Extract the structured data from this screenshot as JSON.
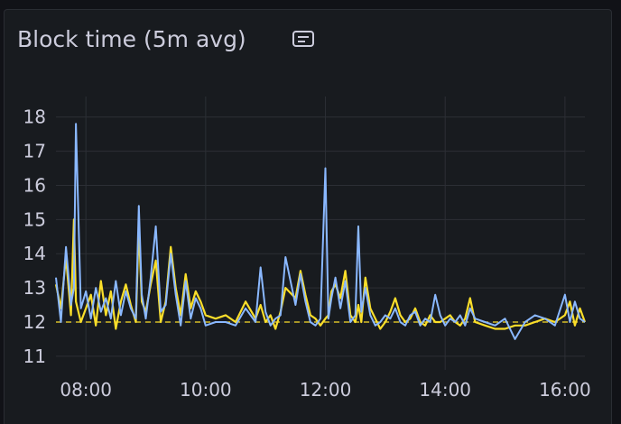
{
  "panel": {
    "title": "Block time (5m avg)",
    "description_icon": "info-note-icon"
  },
  "colors": {
    "background": "#181b1f",
    "grid": "#2c2f35",
    "series_a": "#fade2a",
    "series_b": "#8ab8ff",
    "axis_text": "#ccccdc"
  },
  "chart_data": {
    "type": "line",
    "title": "Block time (5m avg)",
    "xlabel": "",
    "ylabel": "",
    "ylim": [
      10.6,
      18.6
    ],
    "xlim": [
      "07:30",
      "16:20"
    ],
    "y_ticks": [
      11,
      12,
      13,
      14,
      15,
      16,
      17,
      18
    ],
    "x_ticks": [
      "08:00",
      "10:00",
      "12:00",
      "14:00",
      "16:00"
    ],
    "grid": true,
    "legend": "none",
    "threshold": {
      "value": 12,
      "style": "dashed",
      "color": "#fade2a"
    },
    "series": [
      {
        "color": "#fade2a",
        "x": [
          "07:30",
          "07:35",
          "07:40",
          "07:45",
          "07:48",
          "07:50",
          "07:55",
          "08:00",
          "08:05",
          "08:10",
          "08:15",
          "08:20",
          "08:25",
          "08:30",
          "08:35",
          "08:40",
          "08:45",
          "08:50",
          "08:53",
          "08:56",
          "09:00",
          "09:05",
          "09:10",
          "09:15",
          "09:20",
          "09:25",
          "09:30",
          "09:35",
          "09:40",
          "09:45",
          "09:50",
          "09:55",
          "10:00",
          "10:10",
          "10:20",
          "10:30",
          "10:40",
          "10:50",
          "10:55",
          "11:00",
          "11:05",
          "11:10",
          "11:15",
          "11:20",
          "11:30",
          "11:35",
          "11:40",
          "11:45",
          "11:50",
          "11:55",
          "12:00",
          "12:03",
          "12:06",
          "12:10",
          "12:15",
          "12:20",
          "12:25",
          "12:30",
          "12:33",
          "12:36",
          "12:40",
          "12:45",
          "12:50",
          "12:55",
          "13:00",
          "13:05",
          "13:10",
          "13:15",
          "13:20",
          "13:25",
          "13:30",
          "13:35",
          "13:40",
          "13:45",
          "13:50",
          "13:55",
          "14:00",
          "14:05",
          "14:10",
          "14:15",
          "14:20",
          "14:25",
          "14:30",
          "14:40",
          "14:50",
          "15:00",
          "15:10",
          "15:20",
          "15:30",
          "15:40",
          "15:50",
          "16:00",
          "16:05",
          "16:10",
          "16:15",
          "16:20"
        ],
        "values": [
          13.1,
          12.4,
          13.9,
          12.2,
          15.0,
          12.6,
          12.0,
          12.4,
          12.8,
          11.9,
          13.2,
          12.2,
          12.9,
          11.8,
          12.6,
          13.1,
          12.5,
          12.0,
          14.8,
          12.6,
          12.3,
          13.1,
          13.8,
          12.0,
          12.6,
          14.2,
          13.0,
          12.2,
          13.4,
          12.4,
          12.9,
          12.6,
          12.2,
          12.1,
          12.2,
          12.0,
          12.6,
          12.1,
          12.5,
          12.0,
          12.2,
          11.8,
          12.3,
          13.0,
          12.7,
          13.5,
          12.8,
          12.2,
          12.1,
          11.9,
          12.1,
          12.2,
          12.9,
          13.1,
          12.7,
          13.5,
          12.2,
          12.0,
          12.5,
          12.0,
          13.3,
          12.4,
          12.1,
          11.8,
          12.0,
          12.3,
          12.7,
          12.2,
          12.0,
          12.1,
          12.4,
          12.0,
          11.9,
          12.2,
          12.0,
          12.0,
          12.1,
          12.2,
          12.0,
          11.9,
          12.1,
          12.7,
          12.0,
          11.9,
          11.8,
          11.8,
          11.9,
          11.9,
          12.0,
          12.1,
          12.0,
          12.2,
          12.6,
          11.9,
          12.4,
          12.0
        ]
      },
      {
        "color": "#8ab8ff",
        "x": [
          "07:30",
          "07:35",
          "07:40",
          "07:45",
          "07:48",
          "07:50",
          "07:55",
          "08:00",
          "08:05",
          "08:10",
          "08:15",
          "08:20",
          "08:25",
          "08:30",
          "08:35",
          "08:40",
          "08:45",
          "08:50",
          "08:53",
          "08:56",
          "09:00",
          "09:05",
          "09:10",
          "09:15",
          "09:20",
          "09:25",
          "09:30",
          "09:35",
          "09:40",
          "09:45",
          "09:50",
          "09:55",
          "10:00",
          "10:10",
          "10:20",
          "10:30",
          "10:40",
          "10:50",
          "10:55",
          "11:00",
          "11:05",
          "11:10",
          "11:15",
          "11:20",
          "11:30",
          "11:35",
          "11:40",
          "11:45",
          "11:50",
          "11:55",
          "12:00",
          "12:03",
          "12:06",
          "12:10",
          "12:15",
          "12:20",
          "12:25",
          "12:30",
          "12:33",
          "12:36",
          "12:40",
          "12:45",
          "12:50",
          "12:55",
          "13:00",
          "13:05",
          "13:10",
          "13:15",
          "13:20",
          "13:25",
          "13:30",
          "13:35",
          "13:40",
          "13:45",
          "13:50",
          "13:55",
          "14:00",
          "14:05",
          "14:10",
          "14:15",
          "14:20",
          "14:25",
          "14:30",
          "14:40",
          "14:50",
          "15:00",
          "15:10",
          "15:20",
          "15:30",
          "15:40",
          "15:50",
          "16:00",
          "16:05",
          "16:10",
          "16:15",
          "16:20"
        ],
        "values": [
          13.3,
          12.0,
          14.2,
          12.5,
          13.0,
          17.8,
          12.4,
          12.9,
          12.1,
          13.0,
          12.3,
          12.7,
          12.1,
          13.2,
          12.2,
          12.9,
          12.4,
          12.1,
          15.4,
          12.8,
          12.1,
          13.3,
          14.8,
          12.3,
          12.5,
          14.0,
          12.8,
          11.9,
          13.2,
          12.1,
          12.7,
          12.4,
          11.9,
          12.0,
          12.0,
          11.9,
          12.4,
          12.0,
          13.6,
          12.3,
          11.9,
          12.1,
          12.2,
          13.9,
          12.5,
          13.4,
          12.6,
          12.0,
          11.9,
          12.1,
          16.5,
          12.1,
          12.7,
          13.3,
          12.4,
          13.2,
          12.0,
          12.2,
          14.8,
          12.3,
          13.0,
          12.2,
          11.9,
          12.0,
          12.2,
          12.1,
          12.4,
          12.0,
          11.9,
          12.2,
          12.3,
          11.9,
          12.1,
          12.0,
          12.8,
          12.2,
          11.9,
          12.1,
          12.0,
          12.2,
          11.9,
          12.4,
          12.1,
          12.0,
          11.9,
          12.1,
          11.5,
          12.0,
          12.2,
          12.1,
          11.9,
          12.8,
          12.0,
          12.6,
          12.1,
          12.0
        ]
      }
    ]
  }
}
